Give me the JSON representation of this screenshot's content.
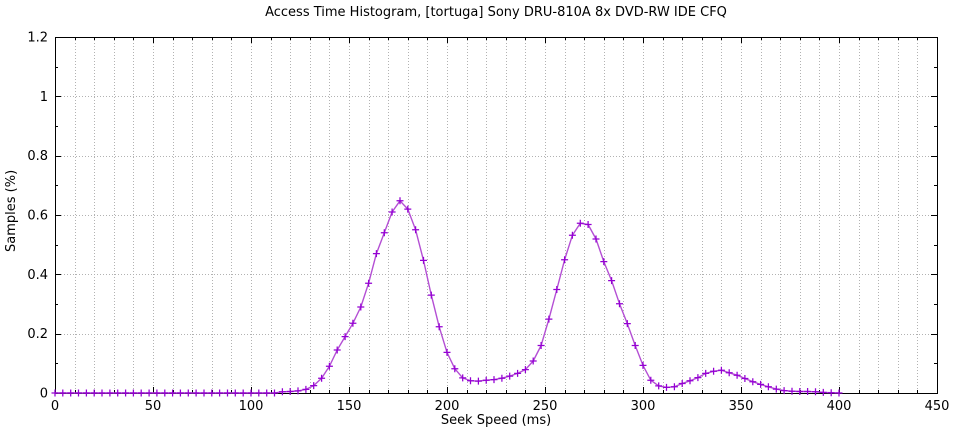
{
  "chart_data": {
    "type": "line",
    "title": "Access Time Histogram, [tortuga] Sony DRU-810A 8x DVD-RW IDE CFQ",
    "xlabel": "Seek Speed (ms)",
    "ylabel": "Samples (%)",
    "xlim": [
      0,
      450
    ],
    "ylim": [
      0,
      1.2
    ],
    "x_tick_labels": [
      "0",
      "50",
      "100",
      "150",
      "200",
      "250",
      "300",
      "350",
      "400",
      "450"
    ],
    "y_tick_labels": [
      "0",
      "0.2",
      "0.4",
      "0.6",
      "0.8",
      "1",
      "1.2"
    ],
    "x_major_tick_step": 50,
    "x_minor_tick_step": 10,
    "y_major_tick_step": 0.2,
    "y_minor_tick_step": 0.1,
    "legend_position": "none",
    "grid": {
      "vertical_step": 10,
      "horizontal_step": 0.2,
      "style": "dotted",
      "color": "#b2b2b2"
    },
    "frame_color": "#000000",
    "background_color": "#ffffff",
    "series": [
      {
        "name": "samples",
        "marker": "plus",
        "marker_color": "#9400d3",
        "line_color": "#b44fd4",
        "x": [
          0,
          4,
          8,
          12,
          16,
          20,
          24,
          28,
          32,
          36,
          40,
          44,
          48,
          52,
          56,
          60,
          64,
          68,
          72,
          76,
          80,
          84,
          88,
          92,
          96,
          100,
          104,
          108,
          112,
          116,
          120,
          124,
          128,
          132,
          136,
          140,
          144,
          148,
          152,
          156,
          160,
          164,
          168,
          172,
          176,
          180,
          184,
          188,
          192,
          196,
          200,
          204,
          208,
          212,
          216,
          220,
          224,
          228,
          232,
          236,
          240,
          244,
          248,
          252,
          256,
          260,
          264,
          268,
          272,
          276,
          280,
          284,
          288,
          292,
          296,
          300,
          304,
          308,
          312,
          316,
          320,
          324,
          328,
          332,
          336,
          340,
          344,
          348,
          352,
          356,
          360,
          364,
          368,
          372,
          376,
          380,
          384,
          388,
          392,
          396,
          400
        ],
        "y": [
          0,
          0,
          0,
          0,
          0,
          0,
          0,
          0,
          0,
          0,
          0,
          0,
          0,
          0,
          0,
          0,
          0,
          0,
          0,
          0,
          0,
          0,
          0,
          0,
          0,
          0,
          0,
          0,
          0,
          0.004,
          0.005,
          0.007,
          0.012,
          0.025,
          0.05,
          0.09,
          0.145,
          0.19,
          0.235,
          0.29,
          0.37,
          0.47,
          0.54,
          0.61,
          0.648,
          0.62,
          0.55,
          0.447,
          0.33,
          0.223,
          0.137,
          0.082,
          0.051,
          0.041,
          0.04,
          0.043,
          0.045,
          0.05,
          0.057,
          0.066,
          0.079,
          0.108,
          0.16,
          0.249,
          0.349,
          0.449,
          0.532,
          0.572,
          0.568,
          0.519,
          0.443,
          0.379,
          0.301,
          0.234,
          0.16,
          0.093,
          0.043,
          0.024,
          0.019,
          0.021,
          0.032,
          0.041,
          0.052,
          0.066,
          0.073,
          0.077,
          0.068,
          0.06,
          0.049,
          0.038,
          0.029,
          0.021,
          0.013,
          0.008,
          0.006,
          0.005,
          0.005,
          0.004,
          0.002,
          0.001,
          0
        ]
      }
    ]
  }
}
